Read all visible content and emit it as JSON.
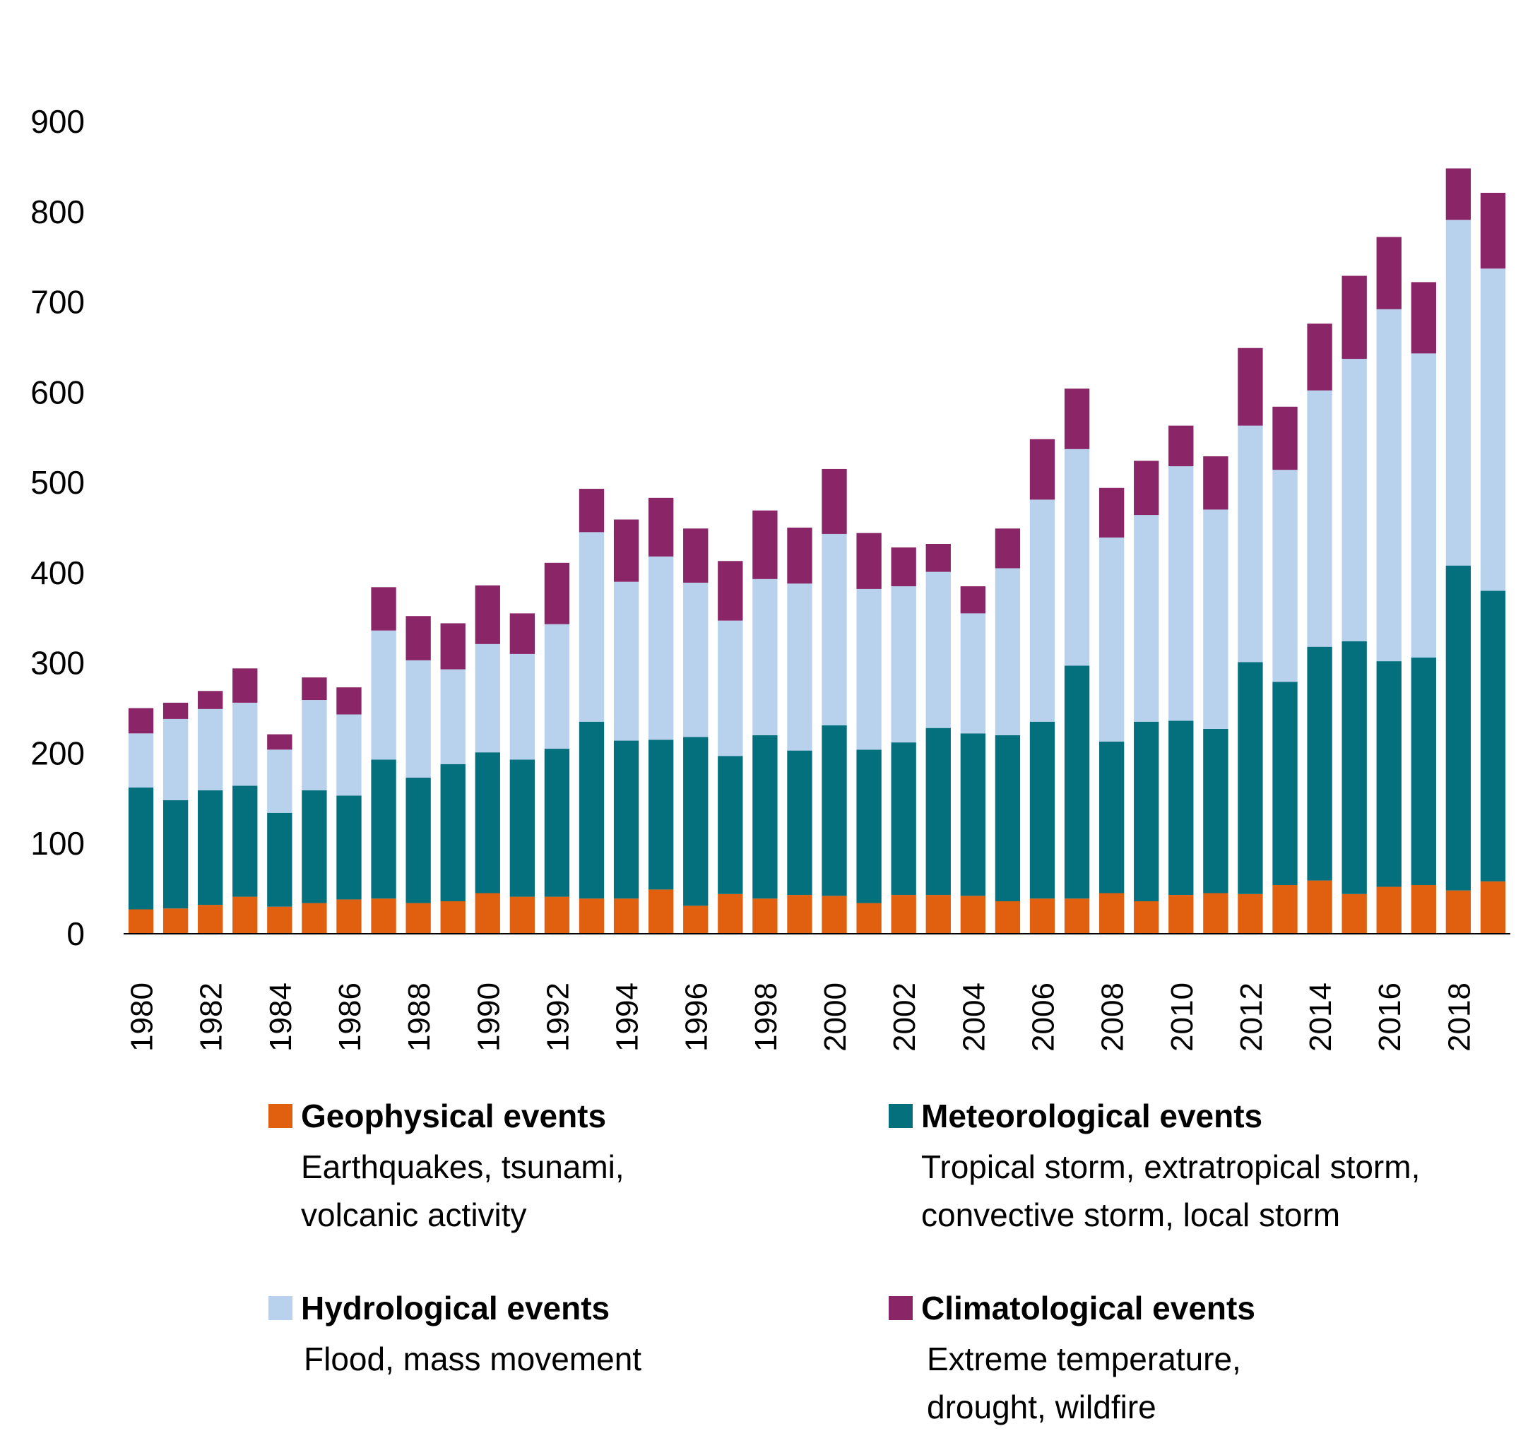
{
  "chart_data": {
    "type": "bar",
    "stacked": true,
    "title": "",
    "xlabel": "",
    "ylabel": "",
    "ylim": [
      0,
      900
    ],
    "yticks": [
      0,
      100,
      200,
      300,
      400,
      500,
      600,
      700,
      800,
      900
    ],
    "grid": false,
    "legend_position": "bottom",
    "categories": [
      1980,
      1981,
      1982,
      1983,
      1984,
      1985,
      1986,
      1987,
      1988,
      1989,
      1990,
      1991,
      1992,
      1993,
      1994,
      1995,
      1996,
      1997,
      1998,
      1999,
      2000,
      2001,
      2002,
      2003,
      2004,
      2005,
      2006,
      2007,
      2008,
      2009,
      2010,
      2011,
      2012,
      2013,
      2014,
      2015,
      2016,
      2017,
      2018,
      2019
    ],
    "xtick_labels": [
      "1980",
      "1982",
      "1984",
      "1986",
      "1988",
      "1990",
      "1992",
      "1994",
      "1996",
      "1998",
      "2000",
      "2002",
      "2004",
      "2006",
      "2008",
      "2010",
      "2012",
      "2014",
      "2016",
      "2018"
    ],
    "series": [
      {
        "name": "Geophysical events",
        "color": "#e06010",
        "values": [
          27,
          28,
          32,
          41,
          30,
          34,
          38,
          39,
          34,
          36,
          45,
          41,
          41,
          39,
          39,
          49,
          31,
          44,
          39,
          43,
          42,
          34,
          43,
          43,
          42,
          36,
          39,
          39,
          45,
          36,
          43,
          45,
          44,
          54,
          59,
          44,
          52,
          54,
          48,
          58
        ]
      },
      {
        "name": "Meteorological events",
        "color": "#04707d",
        "values": [
          135,
          120,
          127,
          123,
          104,
          125,
          115,
          154,
          139,
          152,
          156,
          152,
          164,
          196,
          175,
          166,
          187,
          153,
          181,
          160,
          189,
          170,
          169,
          185,
          180,
          184,
          196,
          258,
          168,
          199,
          193,
          182,
          257,
          225,
          259,
          280,
          250,
          252,
          360,
          322
        ]
      },
      {
        "name": "Hydrological events",
        "color": "#b8d2ee",
        "values": [
          60,
          90,
          90,
          92,
          70,
          100,
          90,
          143,
          130,
          105,
          120,
          117,
          138,
          210,
          176,
          203,
          171,
          150,
          173,
          185,
          212,
          178,
          173,
          173,
          133,
          185,
          246,
          240,
          226,
          229,
          282,
          243,
          262,
          235,
          284,
          313,
          390,
          337,
          383,
          357
        ]
      },
      {
        "name": "Climatological events",
        "color": "#8a2568",
        "values": [
          28,
          18,
          20,
          38,
          17,
          25,
          30,
          48,
          49,
          51,
          65,
          45,
          68,
          48,
          69,
          65,
          60,
          66,
          76,
          62,
          72,
          62,
          43,
          31,
          30,
          44,
          67,
          67,
          55,
          60,
          45,
          59,
          86,
          70,
          74,
          92,
          80,
          79,
          57,
          84
        ]
      }
    ]
  },
  "legend": {
    "items": [
      {
        "title": "Geophysical events",
        "lines": [
          "Earthquakes, tsunami,",
          "volcanic activity"
        ]
      },
      {
        "title": "Meteorological events",
        "lines": [
          "Tropical storm, extratropical storm,",
          "convective storm, local storm"
        ]
      },
      {
        "title": "Hydrological events",
        "lines": [
          "Flood, mass movement"
        ]
      },
      {
        "title": "Climatological events",
        "lines": [
          "Extreme temperature,",
          "drought, wildfire"
        ]
      }
    ]
  }
}
